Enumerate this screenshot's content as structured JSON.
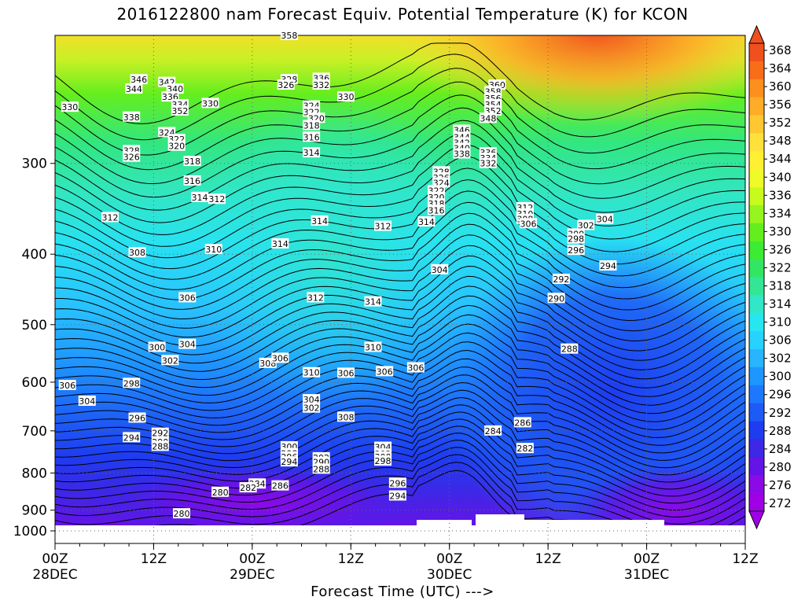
{
  "chart_data": {
    "type": "contour",
    "title": "2016122800 nam Forecast Equiv. Potential Temperature (K) for KCON",
    "xlabel": "Forecast Time (UTC) --->",
    "ylabel": "",
    "x_ticks": [
      {
        "hours": 0,
        "label": "00Z",
        "date": "28DEC",
        "year": "2016"
      },
      {
        "hours": 12,
        "label": "12Z"
      },
      {
        "hours": 24,
        "label": "00Z",
        "date": "29DEC"
      },
      {
        "hours": 36,
        "label": "12Z"
      },
      {
        "hours": 48,
        "label": "00Z",
        "date": "30DEC"
      },
      {
        "hours": 60,
        "label": "12Z"
      },
      {
        "hours": 72,
        "label": "00Z",
        "date": "31DEC"
      },
      {
        "hours": 84,
        "label": "12Z"
      }
    ],
    "x_range_hours": [
      0,
      84
    ],
    "y_ticks": [
      "300",
      "400",
      "500",
      "600",
      "700",
      "800",
      "900",
      "1000"
    ],
    "y_range_hPa": [
      1000,
      200
    ],
    "y_scale": "log-pressure",
    "colorbar": {
      "labels": [
        "368",
        "364",
        "360",
        "356",
        "352",
        "348",
        "344",
        "340",
        "336",
        "334",
        "330",
        "326",
        "322",
        "318",
        "314",
        "310",
        "306",
        "302",
        "300",
        "296",
        "292",
        "288",
        "284",
        "280",
        "276",
        "272"
      ],
      "colors": [
        "#f0501e",
        "#f86e18",
        "#fd8f1e",
        "#ffac28",
        "#ffc832",
        "#ffe13c",
        "#fff032",
        "#f0fa28",
        "#c8fa1e",
        "#96f51e",
        "#64ee1e",
        "#3ceb32",
        "#32e664",
        "#32e696",
        "#32e6c8",
        "#28e6f0",
        "#28d2ff",
        "#28b4ff",
        "#1e96ff",
        "#1e78ff",
        "#1e5af5",
        "#1e3cf0",
        "#3c28e6",
        "#6414e6",
        "#8c0ae6",
        "#a000e6"
      ],
      "min": 272,
      "max": 368
    },
    "contour_labels": [
      {
        "text": "358",
        "h": 28.5,
        "p": 200
      },
      {
        "text": "346",
        "h": 10.2,
        "p": 230
      },
      {
        "text": "344",
        "h": 9.6,
        "p": 237
      },
      {
        "text": "342",
        "h": 13.6,
        "p": 232
      },
      {
        "text": "340",
        "h": 14.6,
        "p": 237
      },
      {
        "text": "336",
        "h": 14.0,
        "p": 243
      },
      {
        "text": "334",
        "h": 15.2,
        "p": 249
      },
      {
        "text": "352",
        "h": 15.2,
        "p": 254
      },
      {
        "text": "330",
        "h": 1.8,
        "p": 251
      },
      {
        "text": "330",
        "h": 18.9,
        "p": 248
      },
      {
        "text": "338",
        "h": 9.3,
        "p": 259
      },
      {
        "text": "328",
        "h": 28.5,
        "p": 230
      },
      {
        "text": "326",
        "h": 28.1,
        "p": 234
      },
      {
        "text": "336",
        "h": 32.4,
        "p": 229
      },
      {
        "text": "332",
        "h": 32.4,
        "p": 234
      },
      {
        "text": "330",
        "h": 35.4,
        "p": 243
      },
      {
        "text": "324",
        "h": 31.2,
        "p": 250
      },
      {
        "text": "322",
        "h": 31.2,
        "p": 255
      },
      {
        "text": "320",
        "h": 31.8,
        "p": 260
      },
      {
        "text": "318",
        "h": 31.2,
        "p": 266
      },
      {
        "text": "316",
        "h": 31.2,
        "p": 276
      },
      {
        "text": "360",
        "h": 53.8,
        "p": 234
      },
      {
        "text": "358",
        "h": 53.3,
        "p": 239
      },
      {
        "text": "356",
        "h": 53.3,
        "p": 244
      },
      {
        "text": "354",
        "h": 53.3,
        "p": 249
      },
      {
        "text": "352",
        "h": 53.3,
        "p": 254
      },
      {
        "text": "348",
        "h": 52.7,
        "p": 260
      },
      {
        "text": "346",
        "h": 49.5,
        "p": 270
      },
      {
        "text": "344",
        "h": 49.5,
        "p": 276
      },
      {
        "text": "342",
        "h": 49.5,
        "p": 281
      },
      {
        "text": "340",
        "h": 49.5,
        "p": 286
      },
      {
        "text": "338",
        "h": 49.5,
        "p": 291
      },
      {
        "text": "324",
        "h": 13.6,
        "p": 272
      },
      {
        "text": "322",
        "h": 14.8,
        "p": 278
      },
      {
        "text": "320",
        "h": 14.8,
        "p": 284
      },
      {
        "text": "328",
        "h": 9.3,
        "p": 288
      },
      {
        "text": "326",
        "h": 9.3,
        "p": 294
      },
      {
        "text": "318",
        "h": 16.7,
        "p": 298
      },
      {
        "text": "316",
        "h": 16.7,
        "p": 317
      },
      {
        "text": "314",
        "h": 31.2,
        "p": 290
      },
      {
        "text": "336",
        "h": 52.7,
        "p": 290
      },
      {
        "text": "334",
        "h": 52.7,
        "p": 295
      },
      {
        "text": "332",
        "h": 52.7,
        "p": 300
      },
      {
        "text": "328",
        "h": 47.0,
        "p": 308
      },
      {
        "text": "326",
        "h": 47.0,
        "p": 314
      },
      {
        "text": "324",
        "h": 47.0,
        "p": 319
      },
      {
        "text": "322",
        "h": 46.4,
        "p": 327
      },
      {
        "text": "320",
        "h": 46.4,
        "p": 334
      },
      {
        "text": "318",
        "h": 46.4,
        "p": 341
      },
      {
        "text": "316",
        "h": 46.4,
        "p": 348
      },
      {
        "text": "314",
        "h": 17.6,
        "p": 334
      },
      {
        "text": "312",
        "h": 19.7,
        "p": 336
      },
      {
        "text": "312",
        "h": 6.7,
        "p": 356
      },
      {
        "text": "314",
        "h": 32.2,
        "p": 360
      },
      {
        "text": "312",
        "h": 39.9,
        "p": 366
      },
      {
        "text": "314",
        "h": 45.2,
        "p": 361
      },
      {
        "text": "312",
        "h": 57.2,
        "p": 345
      },
      {
        "text": "310",
        "h": 57.2,
        "p": 352
      },
      {
        "text": "308",
        "h": 57.2,
        "p": 358
      },
      {
        "text": "306",
        "h": 57.6,
        "p": 363
      },
      {
        "text": "304",
        "h": 66.9,
        "p": 358
      },
      {
        "text": "302",
        "h": 64.6,
        "p": 365
      },
      {
        "text": "300",
        "h": 63.4,
        "p": 375
      },
      {
        "text": "298",
        "h": 63.4,
        "p": 381
      },
      {
        "text": "296",
        "h": 63.4,
        "p": 395
      },
      {
        "text": "308",
        "h": 10.0,
        "p": 398
      },
      {
        "text": "310",
        "h": 19.3,
        "p": 394
      },
      {
        "text": "314",
        "h": 27.4,
        "p": 387
      },
      {
        "text": "304",
        "h": 46.8,
        "p": 420
      },
      {
        "text": "294",
        "h": 67.3,
        "p": 415
      },
      {
        "text": "292",
        "h": 61.6,
        "p": 433
      },
      {
        "text": "290",
        "h": 61.0,
        "p": 460
      },
      {
        "text": "306",
        "h": 16.1,
        "p": 459
      },
      {
        "text": "312",
        "h": 31.7,
        "p": 459
      },
      {
        "text": "314",
        "h": 38.7,
        "p": 465
      },
      {
        "text": "300",
        "h": 12.4,
        "p": 537
      },
      {
        "text": "304",
        "h": 16.1,
        "p": 532
      },
      {
        "text": "302",
        "h": 14.0,
        "p": 560
      },
      {
        "text": "310",
        "h": 38.7,
        "p": 537
      },
      {
        "text": "288",
        "h": 62.6,
        "p": 540
      },
      {
        "text": "308",
        "h": 25.9,
        "p": 565
      },
      {
        "text": "306",
        "h": 27.4,
        "p": 556
      },
      {
        "text": "306",
        "h": 35.4,
        "p": 583
      },
      {
        "text": "306",
        "h": 40.1,
        "p": 580
      },
      {
        "text": "306",
        "h": 43.9,
        "p": 573
      },
      {
        "text": "310",
        "h": 31.2,
        "p": 582
      },
      {
        "text": "306",
        "h": 1.5,
        "p": 606
      },
      {
        "text": "298",
        "h": 9.3,
        "p": 602
      },
      {
        "text": "304",
        "h": 3.9,
        "p": 637
      },
      {
        "text": "304",
        "h": 31.2,
        "p": 634
      },
      {
        "text": "302",
        "h": 31.2,
        "p": 651
      },
      {
        "text": "296",
        "h": 10.0,
        "p": 672
      },
      {
        "text": "308",
        "h": 35.4,
        "p": 670
      },
      {
        "text": "292",
        "h": 12.8,
        "p": 705
      },
      {
        "text": "294",
        "h": 9.3,
        "p": 715
      },
      {
        "text": "290",
        "h": 12.8,
        "p": 725
      },
      {
        "text": "288",
        "h": 12.8,
        "p": 735
      },
      {
        "text": "284",
        "h": 53.3,
        "p": 700
      },
      {
        "text": "286",
        "h": 56.9,
        "p": 682
      },
      {
        "text": "300",
        "h": 28.5,
        "p": 736
      },
      {
        "text": "298",
        "h": 28.5,
        "p": 752
      },
      {
        "text": "296",
        "h": 28.5,
        "p": 760
      },
      {
        "text": "294",
        "h": 28.5,
        "p": 772
      },
      {
        "text": "292",
        "h": 32.4,
        "p": 762
      },
      {
        "text": "290",
        "h": 32.4,
        "p": 773
      },
      {
        "text": "288",
        "h": 32.4,
        "p": 790
      },
      {
        "text": "304",
        "h": 39.9,
        "p": 737
      },
      {
        "text": "302",
        "h": 39.9,
        "p": 753
      },
      {
        "text": "300",
        "h": 39.9,
        "p": 760
      },
      {
        "text": "298",
        "h": 39.9,
        "p": 770
      },
      {
        "text": "282",
        "h": 57.2,
        "p": 740
      },
      {
        "text": "296",
        "h": 41.7,
        "p": 826
      },
      {
        "text": "294",
        "h": 41.7,
        "p": 860
      },
      {
        "text": "284",
        "h": 24.6,
        "p": 828
      },
      {
        "text": "282",
        "h": 23.5,
        "p": 838
      },
      {
        "text": "286",
        "h": 27.4,
        "p": 833
      },
      {
        "text": "280",
        "h": 20.1,
        "p": 850
      },
      {
        "text": "280",
        "h": 15.4,
        "p": 910
      }
    ],
    "grid": true
  }
}
